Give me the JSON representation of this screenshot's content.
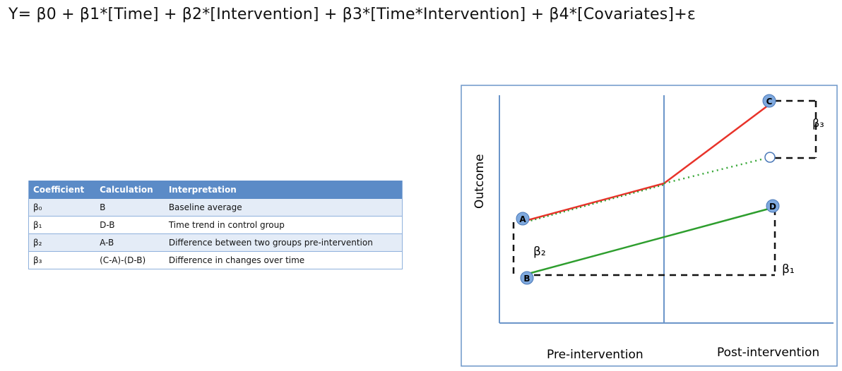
{
  "formula": "Y= β0 + β1*[Time] + β2*[Intervention] + β3*[Time*Intervention] + β4*[Covariates]+ε",
  "table": {
    "headers": [
      "Coefficient",
      "Calculation",
      "Interpretation"
    ],
    "rows": [
      [
        "β₀",
        "B",
        "Baseline average"
      ],
      [
        "β₁",
        "D-B",
        "Time trend in control group"
      ],
      [
        "β₂",
        "A-B",
        "Difference between two groups pre-intervention"
      ],
      [
        "β₃",
        "(C-A)-(D-B)",
        "Difference in changes over time"
      ]
    ]
  },
  "diagram": {
    "ylabel": "Outcome",
    "xlabel_pre": "Pre-intervention",
    "xlabel_post": "Post-intervention",
    "points": {
      "A": "A",
      "B": "B",
      "C": "C",
      "D": "D"
    },
    "beta_labels": {
      "b1": "β₁",
      "b2": "β₂",
      "b3": "β₃"
    },
    "colors": {
      "intervention": "#e8332a",
      "control": "#2e9e2e",
      "counterfactual": "#3aa83a",
      "axis": "#6b95c9",
      "point": "#7fa9de"
    }
  }
}
